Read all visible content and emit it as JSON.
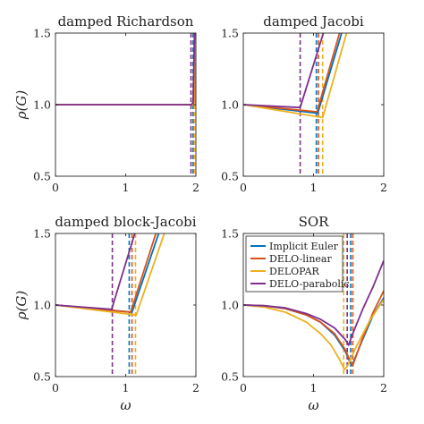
{
  "colors": {
    "implicit_euler": "#0072BD",
    "delo_linear": "#D95319",
    "delopar": "#EDB120",
    "delo_parabolic": "#7E2F8E"
  },
  "axes_labels": {
    "x": "ω",
    "y": "ρ(G)"
  },
  "chart_data": [
    {
      "type": "line",
      "title": "damped Richardson",
      "xlim": [
        0,
        2
      ],
      "ylim": [
        0.5,
        1.5
      ],
      "xticks": [
        "0",
        "1",
        "2"
      ],
      "yticks": [
        "0.5",
        "1.0",
        "1.5"
      ],
      "series": [
        {
          "key": "implicit_euler",
          "x": [
            0,
            1.96,
            1.97,
            1.99
          ],
          "y": [
            1.0,
            1.0,
            1.02,
            1.5
          ]
        },
        {
          "key": "delo_linear",
          "x": [
            0,
            1.97,
            1.98,
            2.0
          ],
          "y": [
            1.0,
            1.0,
            1.02,
            1.5
          ]
        },
        {
          "key": "delopar",
          "x": [
            0,
            1.98,
            1.99,
            2.0
          ],
          "y": [
            1.0,
            1.0,
            1.02,
            1.5
          ]
        },
        {
          "key": "delo_parabolic",
          "x": [
            0,
            1.94,
            1.96,
            1.98
          ],
          "y": [
            1.0,
            1.0,
            1.02,
            1.5
          ]
        }
      ],
      "vlines": [
        {
          "key": "delo_parabolic",
          "x": 1.93
        },
        {
          "key": "implicit_euler",
          "x": 1.96
        },
        {
          "key": "delo_linear",
          "x": 1.97
        },
        {
          "key": "delopar",
          "x": 1.98
        }
      ]
    },
    {
      "type": "line",
      "title": "damped Jacobi",
      "xlim": [
        0,
        2
      ],
      "ylim": [
        0.5,
        1.5
      ],
      "xticks": [
        "0",
        "1",
        "2"
      ],
      "yticks": [
        "0.5",
        "1.0",
        "1.5"
      ],
      "series": [
        {
          "key": "implicit_euler",
          "x": [
            0,
            1.06,
            1.4
          ],
          "y": [
            1.0,
            0.94,
            1.5
          ]
        },
        {
          "key": "delo_linear",
          "x": [
            0,
            1.05,
            1.37
          ],
          "y": [
            1.0,
            0.95,
            1.5
          ]
        },
        {
          "key": "delopar",
          "x": [
            0,
            1.13,
            1.47
          ],
          "y": [
            1.0,
            0.91,
            1.5
          ]
        },
        {
          "key": "delo_parabolic",
          "x": [
            0,
            0.81,
            1.14
          ],
          "y": [
            1.0,
            0.98,
            1.5
          ]
        }
      ],
      "vlines": [
        {
          "key": "delo_parabolic",
          "x": 0.81
        },
        {
          "key": "implicit_euler",
          "x": 1.04
        },
        {
          "key": "delo_linear",
          "x": 1.07
        },
        {
          "key": "delopar",
          "x": 1.13
        }
      ]
    },
    {
      "type": "line",
      "title": "damped block-Jacobi",
      "xlim": [
        0,
        2
      ],
      "ylim": [
        0.5,
        1.5
      ],
      "xticks": [
        "0",
        "1",
        "2"
      ],
      "yticks": [
        "0.5",
        "1.0",
        "1.5"
      ],
      "series": [
        {
          "key": "implicit_euler",
          "x": [
            0,
            1.09,
            1.47
          ],
          "y": [
            1.0,
            0.95,
            1.5
          ]
        },
        {
          "key": "delo_linear",
          "x": [
            0,
            1.07,
            1.43
          ],
          "y": [
            1.0,
            0.95,
            1.5
          ]
        },
        {
          "key": "delopar",
          "x": [
            0,
            1.15,
            1.55
          ],
          "y": [
            1.0,
            0.93,
            1.5
          ]
        },
        {
          "key": "delo_parabolic",
          "x": [
            0,
            0.8,
            1.13
          ],
          "y": [
            1.0,
            0.97,
            1.5
          ]
        }
      ],
      "vlines": [
        {
          "key": "delo_parabolic",
          "x": 0.81
        },
        {
          "key": "implicit_euler",
          "x": 1.05
        },
        {
          "key": "delo_linear",
          "x": 1.09
        },
        {
          "key": "delopar",
          "x": 1.14
        }
      ]
    },
    {
      "type": "line",
      "title": "SOR",
      "xlim": [
        0,
        2
      ],
      "ylim": [
        0.5,
        1.5
      ],
      "xticks": [
        "0",
        "1",
        "2"
      ],
      "yticks": [
        "0.5",
        "1.0",
        "1.5"
      ],
      "series": [
        {
          "key": "implicit_euler",
          "x": [
            0,
            0.3,
            0.6,
            0.9,
            1.1,
            1.3,
            1.45,
            1.52,
            1.55,
            1.7,
            1.85,
            2.0
          ],
          "y": [
            1.0,
            0.995,
            0.975,
            0.93,
            0.88,
            0.79,
            0.68,
            0.6,
            0.58,
            0.76,
            0.93,
            1.05
          ]
        },
        {
          "key": "delo_linear",
          "x": [
            0,
            0.3,
            0.6,
            0.9,
            1.1,
            1.3,
            1.45,
            1.52,
            1.56,
            1.7,
            1.85,
            2.0
          ],
          "y": [
            1.0,
            0.995,
            0.975,
            0.93,
            0.88,
            0.8,
            0.69,
            0.61,
            0.58,
            0.77,
            0.95,
            1.1
          ]
        },
        {
          "key": "delopar",
          "x": [
            0,
            0.3,
            0.6,
            0.9,
            1.1,
            1.25,
            1.37,
            1.44,
            1.48,
            1.6,
            1.8,
            2.0
          ],
          "y": [
            1.0,
            0.985,
            0.95,
            0.88,
            0.8,
            0.72,
            0.62,
            0.55,
            0.57,
            0.7,
            0.89,
            1.04
          ]
        },
        {
          "key": "delo_parabolic",
          "x": [
            0,
            0.3,
            0.6,
            0.9,
            1.1,
            1.3,
            1.45,
            1.5,
            1.55,
            1.7,
            1.85,
            2.0
          ],
          "y": [
            1.0,
            0.995,
            0.98,
            0.94,
            0.9,
            0.84,
            0.76,
            0.72,
            0.79,
            0.97,
            1.13,
            1.31
          ]
        }
      ],
      "vlines": [
        {
          "key": "delopar",
          "x": 1.43
        },
        {
          "key": "delo_parabolic",
          "x": 1.48
        },
        {
          "key": "implicit_euler",
          "x": 1.53
        },
        {
          "key": "delo_linear",
          "x": 1.56
        }
      ],
      "legend": {
        "placement": "top-left",
        "entries": [
          {
            "key": "implicit_euler",
            "label": "Implicit Euler"
          },
          {
            "key": "delo_linear",
            "label": "DELO-linear"
          },
          {
            "key": "delopar",
            "label": "DELOPAR"
          },
          {
            "key": "delo_parabolic",
            "label": "DELO-parabolic"
          }
        ]
      }
    }
  ]
}
